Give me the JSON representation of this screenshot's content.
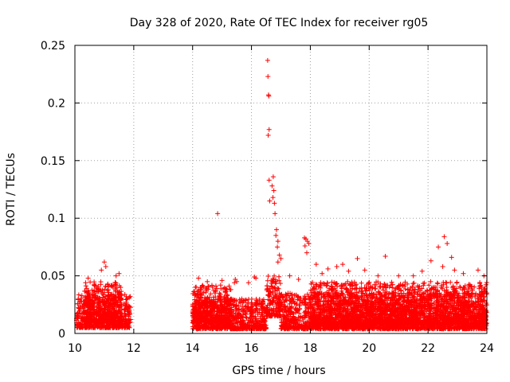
{
  "chart_data": {
    "type": "scatter",
    "title": "Day 328 of 2020, Rate Of TEC Index for receiver rg05",
    "xlabel": "GPS time / hours",
    "ylabel": "ROTI / TECUs",
    "xlim": [
      10,
      24
    ],
    "ylim": [
      0,
      0.25
    ],
    "xticks": [
      10,
      12,
      14,
      16,
      18,
      20,
      22,
      24
    ],
    "yticks": [
      0,
      0.05,
      0.1,
      0.15,
      0.2,
      0.25
    ],
    "ytick_labels": [
      "0",
      "0.05",
      "0.1",
      "0.15",
      "0.2",
      "0.25"
    ],
    "grid": true,
    "marker": "+",
    "marker_color": "#ff0000",
    "series": [
      {
        "name": "ROTI",
        "points": [
          [
            14.85,
            0.104
          ],
          [
            16.55,
            0.237
          ],
          [
            16.56,
            0.223
          ],
          [
            16.58,
            0.207
          ],
          [
            16.59,
            0.206
          ],
          [
            16.6,
            0.177
          ],
          [
            16.57,
            0.172
          ],
          [
            16.6,
            0.133
          ],
          [
            16.74,
            0.136
          ],
          [
            16.7,
            0.128
          ],
          [
            16.76,
            0.124
          ],
          [
            16.73,
            0.118
          ],
          [
            16.78,
            0.113
          ],
          [
            16.62,
            0.115
          ],
          [
            16.8,
            0.104
          ],
          [
            16.85,
            0.09
          ],
          [
            16.83,
            0.085
          ],
          [
            16.9,
            0.08
          ],
          [
            16.88,
            0.075
          ],
          [
            16.95,
            0.068
          ],
          [
            17.0,
            0.065
          ],
          [
            16.9,
            0.062
          ],
          [
            17.8,
            0.083
          ],
          [
            17.85,
            0.082
          ],
          [
            17.9,
            0.08
          ],
          [
            17.82,
            0.076
          ],
          [
            17.95,
            0.078
          ],
          [
            17.88,
            0.07
          ],
          [
            19.6,
            0.065
          ],
          [
            20.55,
            0.067
          ],
          [
            22.55,
            0.084
          ],
          [
            22.35,
            0.075
          ],
          [
            22.65,
            0.078
          ],
          [
            22.1,
            0.063
          ],
          [
            22.8,
            0.066
          ],
          [
            22.5,
            0.058
          ],
          [
            11.0,
            0.062
          ],
          [
            11.05,
            0.058
          ],
          [
            10.9,
            0.055
          ],
          [
            11.5,
            0.052
          ],
          [
            10.45,
            0.048
          ],
          [
            11.4,
            0.05
          ],
          [
            16.1,
            0.049
          ],
          [
            16.15,
            0.048
          ],
          [
            15.45,
            0.047
          ],
          [
            15.5,
            0.045
          ],
          [
            15.42,
            0.044
          ],
          [
            23.7,
            0.055
          ],
          [
            19.1,
            0.06
          ],
          [
            18.2,
            0.06
          ],
          [
            17.3,
            0.05
          ],
          [
            18.9,
            0.058
          ],
          [
            18.6,
            0.056
          ],
          [
            21.5,
            0.05
          ],
          [
            20.3,
            0.05
          ],
          [
            19.85,
            0.055
          ],
          [
            21.8,
            0.054
          ],
          [
            23.2,
            0.052
          ],
          [
            23.9,
            0.05
          ],
          [
            14.2,
            0.048
          ],
          [
            14.5,
            0.045
          ],
          [
            15.0,
            0.046
          ],
          [
            15.9,
            0.044
          ],
          [
            17.6,
            0.047
          ],
          [
            18.4,
            0.052
          ],
          [
            19.3,
            0.054
          ],
          [
            21.0,
            0.05
          ],
          [
            22.9,
            0.055
          ]
        ],
        "dense_bands": [
          {
            "x_range": [
              10.05,
              11.9
            ],
            "y_range": [
              0.005,
              0.034
            ]
          },
          {
            "x_range": [
              10.3,
              11.6
            ],
            "y_range": [
              0.01,
              0.045
            ]
          },
          {
            "x_range": [
              14.0,
              16.5
            ],
            "y_range": [
              0.004,
              0.03
            ]
          },
          {
            "x_range": [
              14.0,
              15.3
            ],
            "y_range": [
              0.01,
              0.042
            ]
          },
          {
            "x_range": [
              16.5,
              17.0
            ],
            "y_range": [
              0.015,
              0.05
            ]
          },
          {
            "x_range": [
              17.0,
              24.0
            ],
            "y_range": [
              0.004,
              0.035
            ]
          },
          {
            "x_range": [
              18.0,
              24.0
            ],
            "y_range": [
              0.008,
              0.045
            ]
          }
        ]
      }
    ]
  }
}
